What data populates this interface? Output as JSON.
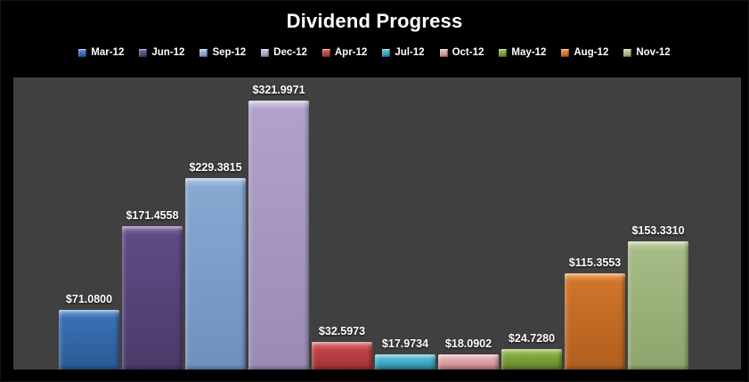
{
  "window": {
    "background": "#000000",
    "plot_background": "#404040",
    "text_color": "#ffffff"
  },
  "chart_data": {
    "type": "bar",
    "title": "Dividend Progress",
    "xlabel": "",
    "ylabel": "",
    "ylim": [
      0,
      350
    ],
    "grid": false,
    "legend_position": "top",
    "categories": [
      "Mar-12",
      "Jun-12",
      "Sep-12",
      "Dec-12",
      "Apr-12",
      "Jul-12",
      "Oct-12",
      "May-12",
      "Aug-12",
      "Nov-12"
    ],
    "values": [
      71.08,
      171.4558,
      229.3815,
      321.9971,
      32.5973,
      17.9734,
      18.0902,
      24.728,
      115.3553,
      153.331
    ],
    "data_labels": [
      "$71.0800",
      "$171.4558",
      "$229.3815",
      "$321.9971",
      "$32.5973",
      "$17.9734",
      "$18.0902",
      "$24.7280",
      "$115.3553",
      "$153.3310"
    ],
    "series_colors": [
      {
        "light": "#6f9fd8",
        "base": "#3a6fb3",
        "dark": "#2a5a96"
      },
      {
        "light": "#8a76ad",
        "base": "#5f4b84",
        "dark": "#4a3a6a"
      },
      {
        "light": "#b4cbe8",
        "base": "#88a7d1",
        "dark": "#7090bc"
      },
      {
        "light": "#d5cde6",
        "base": "#b0a2ca",
        "dark": "#9a8bb5"
      },
      {
        "light": "#da7476",
        "base": "#bf4244",
        "dark": "#9e3335"
      },
      {
        "light": "#6fc8de",
        "base": "#3aa6c2",
        "dark": "#2d8aa3"
      },
      {
        "light": "#ecc0c4",
        "base": "#d99a9f",
        "dark": "#c28388"
      },
      {
        "light": "#a3c465",
        "base": "#7ba23b",
        "dark": "#648529"
      },
      {
        "light": "#eda050",
        "base": "#d0742b",
        "dark": "#b05f1e"
      },
      {
        "light": "#c8d8ab",
        "base": "#a6bb85",
        "dark": "#8da46c"
      }
    ]
  }
}
